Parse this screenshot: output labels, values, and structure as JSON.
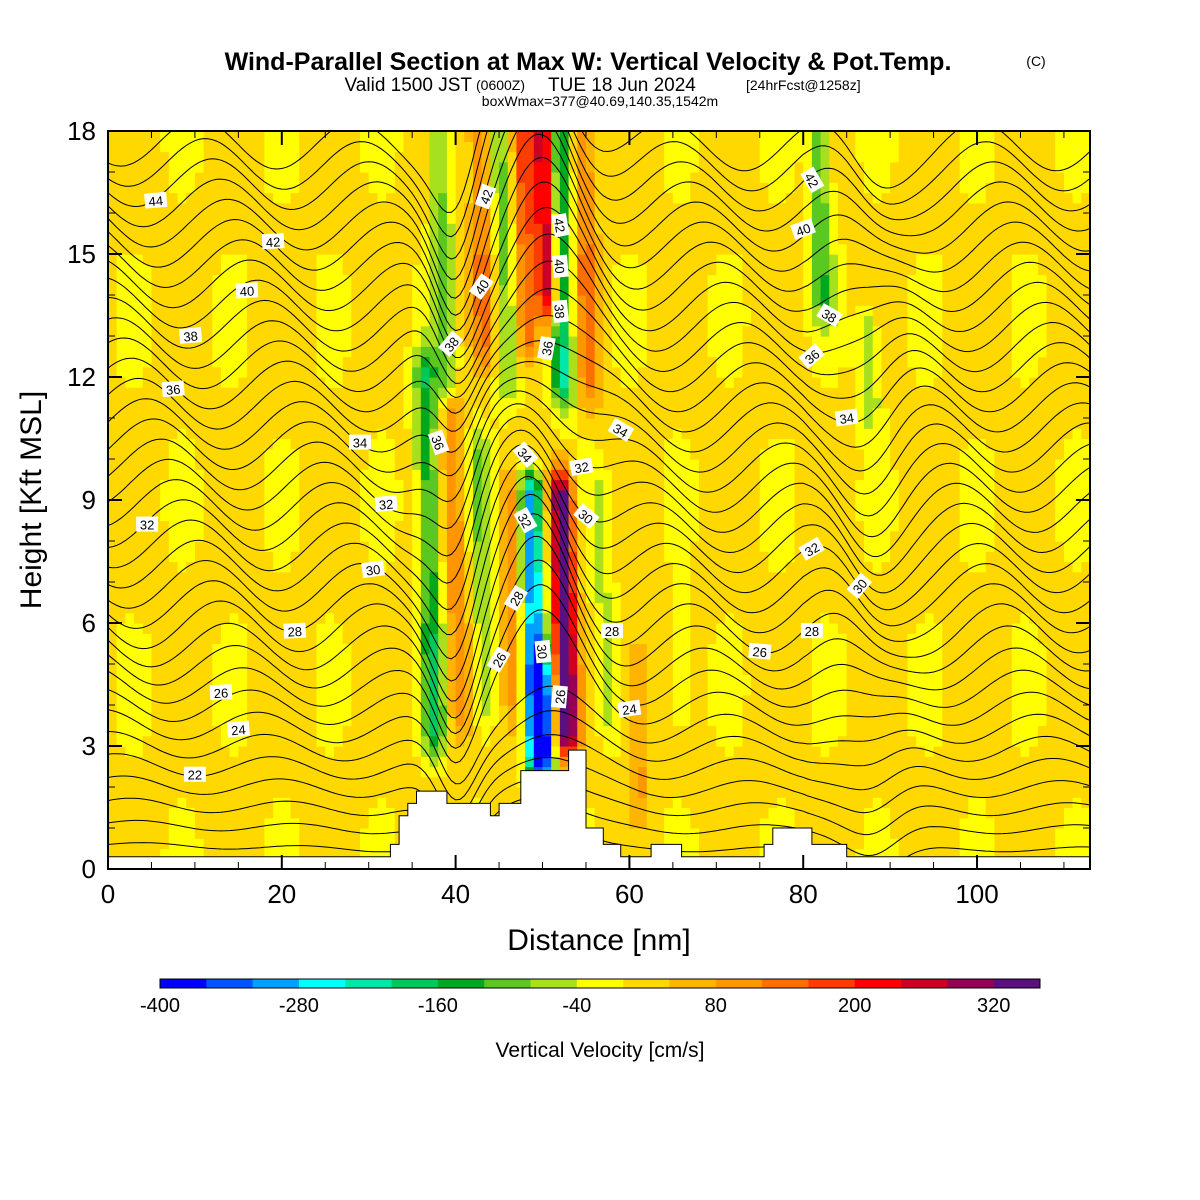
{
  "title": {
    "main": "Wind-Parallel Section at Max W: Vertical Velocity & Pot.Temp.",
    "copyright": "(C)",
    "valid_prefix": "Valid 1500 JST",
    "valid_utc": "(0600Z)",
    "valid_date": "TUE 18 Jun 2024",
    "forecast": "[24hrFcst@1258z]",
    "boxwmax": "boxWmax=377@40.69,140.35,1542m"
  },
  "colorbar": {
    "title": "Vertical Velocity [cm/s]",
    "min": -400,
    "max": 360,
    "step": 40,
    "tick_values": [
      -400,
      -280,
      -160,
      -40,
      80,
      200,
      320
    ],
    "tick_labels": [
      "-400",
      "-280",
      "-160",
      "-40",
      "80",
      "200",
      "320"
    ],
    "colors": [
      "#0000ff",
      "#0055ff",
      "#00a0ff",
      "#00ffff",
      "#00e8a8",
      "#00c85a",
      "#00a820",
      "#5ac81e",
      "#a8e01e",
      "#ffff00",
      "#ffd800",
      "#ffb400",
      "#ff9600",
      "#ff6e00",
      "#ff3c00",
      "#ff0000",
      "#cc0022",
      "#960055",
      "#5a1080"
    ]
  },
  "chart_data": {
    "type": "heatmap",
    "title": "Wind-Parallel Section at Max W: Vertical Velocity & Pot.Temp.",
    "xlabel": "Distance [nm]",
    "ylabel": "Height [Kft MSL]",
    "xlim": [
      0,
      113
    ],
    "ylim": [
      0,
      18
    ],
    "x_ticks": [
      0,
      20,
      40,
      60,
      80,
      100
    ],
    "x_tick_labels": [
      "0",
      "20",
      "40",
      "60",
      "80",
      "100"
    ],
    "y_ticks": [
      0,
      3,
      6,
      9,
      12,
      15,
      18
    ],
    "y_tick_labels": [
      "0",
      "3",
      "6",
      "9",
      "12",
      "15",
      "18"
    ],
    "background_velocity": 10,
    "velocity_features": [
      {
        "x": 37,
        "y0": 3.5,
        "y1": 12.0,
        "value": -160
      },
      {
        "x": 38.5,
        "y0": 12.0,
        "y1": 18,
        "value": -100
      },
      {
        "x": 40,
        "y0": 4,
        "y1": 11,
        "value": 100
      },
      {
        "x": 43,
        "y0": 13,
        "y1": 18,
        "value": 120
      },
      {
        "x": 43,
        "y0": 4,
        "y1": 10,
        "value": -80
      },
      {
        "x": 45.5,
        "y0": 12,
        "y1": 18,
        "value": -100
      },
      {
        "x": 46.5,
        "y0": 4,
        "y1": 9,
        "value": 90
      },
      {
        "x": 48,
        "y0": 13,
        "y1": 18,
        "value": 150
      },
      {
        "x": 49,
        "y0": 3,
        "y1": 9,
        "value": -330
      },
      {
        "x": 50,
        "y0": 2.6,
        "y1": 4.5,
        "value": -260
      },
      {
        "x": 50.5,
        "y0": 14,
        "y1": 18,
        "value": 300
      },
      {
        "x": 52.5,
        "y0": 3.5,
        "y1": 9,
        "value": 370
      },
      {
        "x": 52,
        "y0": 12,
        "y1": 18,
        "value": -240
      },
      {
        "x": 55,
        "y0": 12,
        "y1": 18,
        "value": 120
      },
      {
        "x": 57,
        "y0": 4,
        "y1": 9,
        "value": -60
      },
      {
        "x": 61,
        "y0": 2,
        "y1": 5,
        "value": 80
      },
      {
        "x": 66,
        "y0": 4,
        "y1": 6,
        "value": -50
      },
      {
        "x": 82,
        "y0": 14,
        "y1": 18,
        "value": -120
      },
      {
        "x": 87.5,
        "y0": 11.5,
        "y1": 13,
        "value": -90
      }
    ],
    "terrain": [
      [
        0,
        0.3
      ],
      [
        32.5,
        0.3
      ],
      [
        32.5,
        0.6
      ],
      [
        33.5,
        0.6
      ],
      [
        33.5,
        1.3
      ],
      [
        34.5,
        1.3
      ],
      [
        34.5,
        1.6
      ],
      [
        35.5,
        1.6
      ],
      [
        35.5,
        1.9
      ],
      [
        39,
        1.9
      ],
      [
        39,
        1.6
      ],
      [
        44,
        1.6
      ],
      [
        44,
        1.3
      ],
      [
        45,
        1.3
      ],
      [
        45,
        1.6
      ],
      [
        47.5,
        1.6
      ],
      [
        47.5,
        2.4
      ],
      [
        53,
        2.4
      ],
      [
        53,
        2.9
      ],
      [
        55,
        2.9
      ],
      [
        55,
        1.0
      ],
      [
        57,
        1.0
      ],
      [
        57,
        0.6
      ],
      [
        59,
        0.6
      ],
      [
        59,
        0.3
      ],
      [
        62.5,
        0.3
      ],
      [
        62.5,
        0.6
      ],
      [
        66,
        0.6
      ],
      [
        66,
        0.3
      ],
      [
        75.5,
        0.3
      ],
      [
        75.5,
        0.6
      ],
      [
        76.5,
        0.6
      ],
      [
        76.5,
        1.0
      ],
      [
        81,
        1.0
      ],
      [
        81,
        0.6
      ],
      [
        85,
        0.6
      ],
      [
        85,
        0.3
      ],
      [
        113,
        0.3
      ]
    ],
    "contour_labels": [
      {
        "text": "44",
        "x": 5.5,
        "y": 16.3,
        "angle": -5
      },
      {
        "text": "42",
        "x": 19,
        "y": 15.3,
        "angle": -3
      },
      {
        "text": "40",
        "x": 16,
        "y": 14.1,
        "angle": -3
      },
      {
        "text": "38",
        "x": 9.5,
        "y": 13.0,
        "angle": -5
      },
      {
        "text": "36",
        "x": 7.5,
        "y": 11.7,
        "angle": -5
      },
      {
        "text": "34",
        "x": 29,
        "y": 10.4,
        "angle": 0
      },
      {
        "text": "32",
        "x": 4.5,
        "y": 8.4,
        "angle": 0
      },
      {
        "text": "32",
        "x": 32,
        "y": 8.9,
        "angle": -5
      },
      {
        "text": "30",
        "x": 30.5,
        "y": 7.3,
        "angle": -8
      },
      {
        "text": "28",
        "x": 21.5,
        "y": 5.8,
        "angle": -3
      },
      {
        "text": "26",
        "x": 13,
        "y": 4.3,
        "angle": -3
      },
      {
        "text": "24",
        "x": 15,
        "y": 3.4,
        "angle": -5
      },
      {
        "text": "22",
        "x": 10,
        "y": 2.3,
        "angle": 0
      },
      {
        "text": "36",
        "x": 38,
        "y": 10.4,
        "angle": 70
      },
      {
        "text": "38",
        "x": 39.5,
        "y": 12.8,
        "angle": -50
      },
      {
        "text": "40",
        "x": 43,
        "y": 14.2,
        "angle": -55
      },
      {
        "text": "42",
        "x": 43.5,
        "y": 16.4,
        "angle": -70
      },
      {
        "text": "34",
        "x": 48,
        "y": 10.1,
        "angle": 50
      },
      {
        "text": "32",
        "x": 48,
        "y": 8.5,
        "angle": 60
      },
      {
        "text": "28",
        "x": 47,
        "y": 6.6,
        "angle": -60
      },
      {
        "text": "26",
        "x": 45,
        "y": 5.1,
        "angle": -60
      },
      {
        "text": "30",
        "x": 50,
        "y": 5.3,
        "angle": 85
      },
      {
        "text": "26",
        "x": 52,
        "y": 4.2,
        "angle": -85
      },
      {
        "text": "36",
        "x": 50.5,
        "y": 12.7,
        "angle": -80
      },
      {
        "text": "38",
        "x": 52,
        "y": 13.6,
        "angle": 85
      },
      {
        "text": "40",
        "x": 52,
        "y": 14.7,
        "angle": 85
      },
      {
        "text": "42",
        "x": 52,
        "y": 15.7,
        "angle": 80
      },
      {
        "text": "32",
        "x": 54.5,
        "y": 9.8,
        "angle": -10
      },
      {
        "text": "34",
        "x": 59,
        "y": 10.7,
        "angle": 30
      },
      {
        "text": "30",
        "x": 55,
        "y": 8.6,
        "angle": 40
      },
      {
        "text": "28",
        "x": 58,
        "y": 5.8,
        "angle": 0
      },
      {
        "text": "24",
        "x": 60,
        "y": 3.9,
        "angle": -8
      },
      {
        "text": "26",
        "x": 75,
        "y": 5.3,
        "angle": 5
      },
      {
        "text": "28",
        "x": 81,
        "y": 5.8,
        "angle": 0
      },
      {
        "text": "32",
        "x": 81,
        "y": 7.8,
        "angle": -30
      },
      {
        "text": "30",
        "x": 86.5,
        "y": 6.9,
        "angle": -50
      },
      {
        "text": "34",
        "x": 85,
        "y": 11.0,
        "angle": -8
      },
      {
        "text": "36",
        "x": 81,
        "y": 12.5,
        "angle": -40
      },
      {
        "text": "38",
        "x": 83,
        "y": 13.5,
        "angle": 30
      },
      {
        "text": "40",
        "x": 80,
        "y": 15.6,
        "angle": -20
      },
      {
        "text": "42",
        "x": 81,
        "y": 16.8,
        "angle": 60
      }
    ]
  }
}
